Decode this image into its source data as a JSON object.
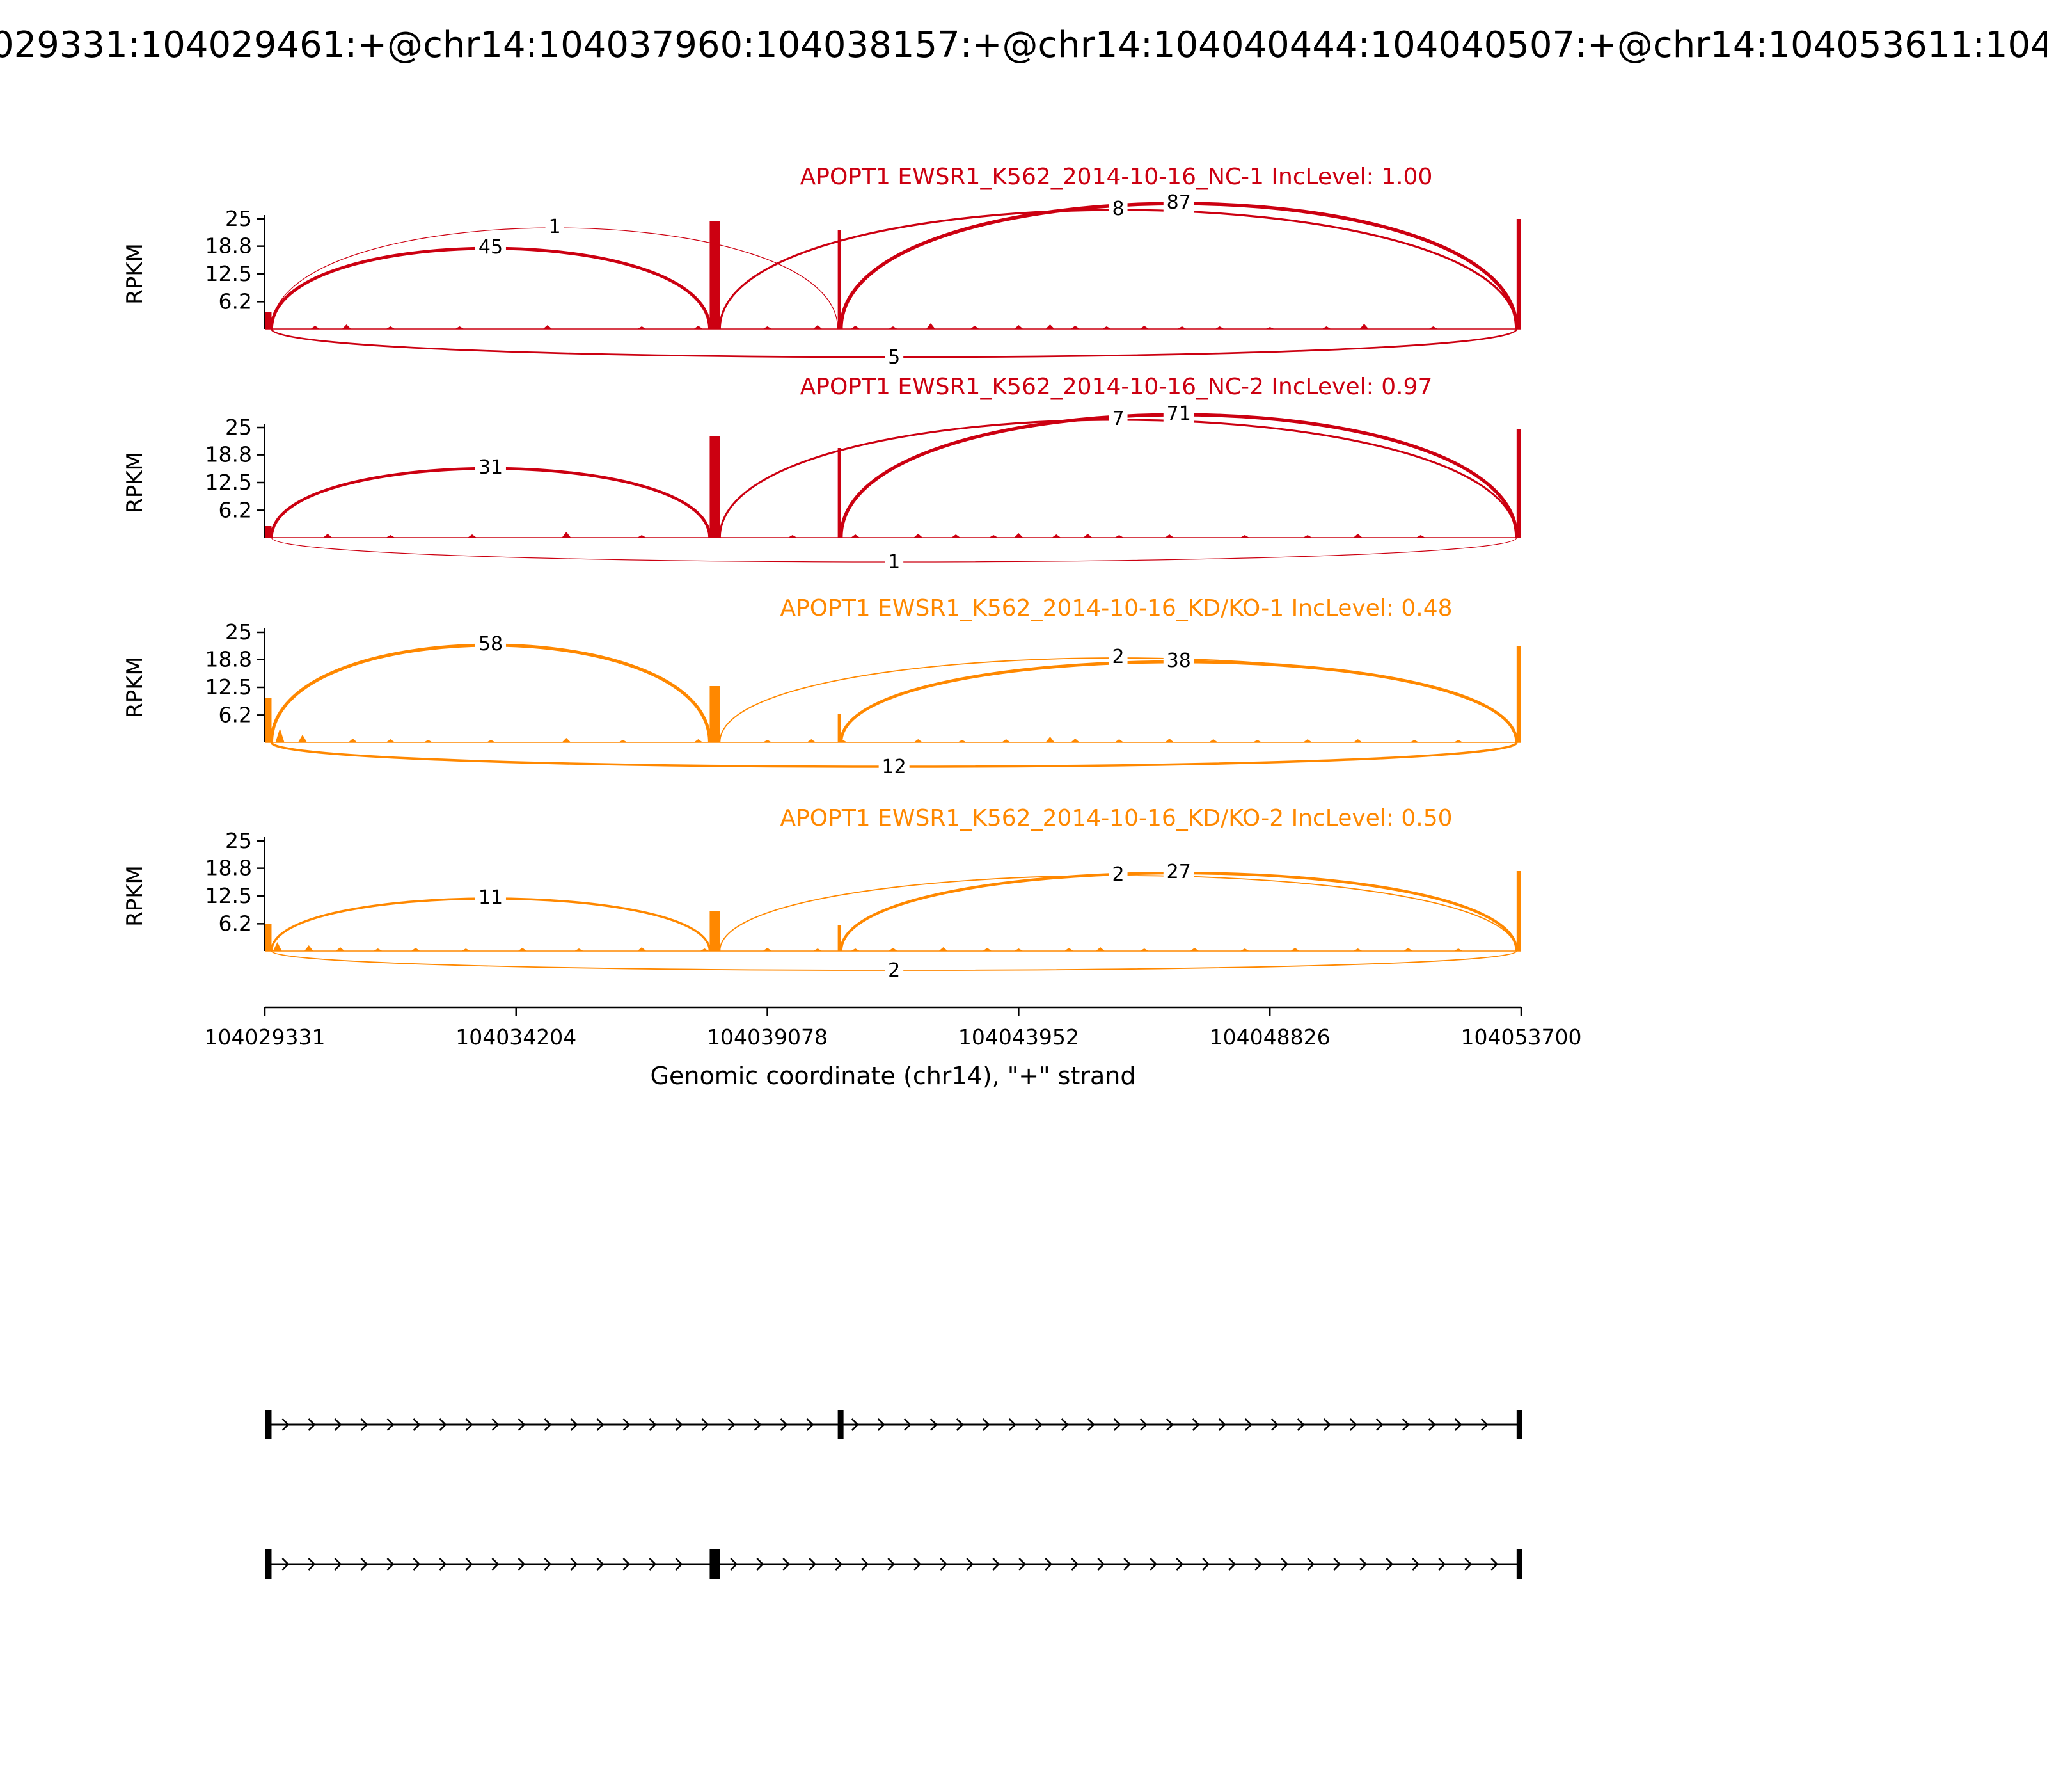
{
  "event_title": "029331:104029461:+@chr14:104037960:104038157:+@chr14:104040444:104040507:+@chr14:104053611:104",
  "ylabel": "RPKM",
  "yticks": [
    {
      "value": 25,
      "label": "25"
    },
    {
      "value": 18.8,
      "label": "18.8"
    },
    {
      "value": 12.5,
      "label": "12.5"
    },
    {
      "value": 6.2,
      "label": "6.2"
    }
  ],
  "x_axis": {
    "label": "Genomic coordinate (chr14), \"+\" strand",
    "range": [
      104029331,
      104053700
    ],
    "ticks": [
      "104029331",
      "104034204",
      "104039078",
      "104043952",
      "104048826",
      "104053700"
    ]
  },
  "chart_data": {
    "type": "sashimi",
    "gene": "APOPT1",
    "chromosome": "chr14",
    "strand": "+",
    "ylim": [
      0,
      25
    ],
    "groups": [
      "NC",
      "KD/KO"
    ],
    "tracks": [
      {
        "id": "NC-1",
        "title": "APOPT1 EWSR1_K562_2014-10-16_NC-1 IncLevel: 1.00",
        "inc_level": 1.0,
        "color": "#CC0011",
        "junctions": [
          {
            "from": 104029461,
            "to": 104037960,
            "count": 45,
            "side": "top",
            "peak": 126
          },
          {
            "from": 104029461,
            "to": 104040444,
            "count": 1,
            "side": "top",
            "peak": 158
          },
          {
            "from": 104038157,
            "to": 104053611,
            "count": 8,
            "side": "top",
            "peak": 186
          },
          {
            "from": 104040507,
            "to": 104053611,
            "count": 87,
            "side": "top",
            "peak": 196
          },
          {
            "from": 104029461,
            "to": 104053611,
            "count": 5,
            "side": "bottom",
            "peak": 44
          }
        ],
        "exons_coverage": [
          {
            "from": 104029331,
            "to": 104029461,
            "h": 26
          },
          {
            "from": 104037960,
            "to": 104038157,
            "h": 168
          },
          {
            "from": 104040444,
            "to": 104040507,
            "h": 155
          },
          {
            "from": 104053611,
            "to": 104053700,
            "h": 172
          }
        ],
        "noise": [
          [
            0.04,
            5
          ],
          [
            0.065,
            7
          ],
          [
            0.1,
            4
          ],
          [
            0.155,
            4
          ],
          [
            0.225,
            6
          ],
          [
            0.3,
            4
          ],
          [
            0.345,
            5
          ],
          [
            0.4,
            4
          ],
          [
            0.44,
            6
          ],
          [
            0.47,
            5
          ],
          [
            0.5,
            4
          ],
          [
            0.53,
            9
          ],
          [
            0.565,
            5
          ],
          [
            0.6,
            6
          ],
          [
            0.625,
            7
          ],
          [
            0.645,
            5
          ],
          [
            0.67,
            4
          ],
          [
            0.7,
            5
          ],
          [
            0.73,
            4
          ],
          [
            0.76,
            4
          ],
          [
            0.8,
            3
          ],
          [
            0.845,
            4
          ],
          [
            0.875,
            8
          ],
          [
            0.93,
            4
          ]
        ]
      },
      {
        "id": "NC-2",
        "title": "APOPT1 EWSR1_K562_2014-10-16_NC-2 IncLevel: 0.97",
        "inc_level": 0.97,
        "color": "#CC0011",
        "junctions": [
          {
            "from": 104029461,
            "to": 104037960,
            "count": 31,
            "side": "top",
            "peak": 108
          },
          {
            "from": 104038157,
            "to": 104053611,
            "count": 7,
            "side": "top",
            "peak": 184
          },
          {
            "from": 104040507,
            "to": 104053611,
            "count": 71,
            "side": "top",
            "peak": 192
          },
          {
            "from": 104029461,
            "to": 104053611,
            "count": 1,
            "side": "bottom",
            "peak": 38
          }
        ],
        "exons_coverage": [
          {
            "from": 104029331,
            "to": 104029461,
            "h": 18
          },
          {
            "from": 104037960,
            "to": 104038157,
            "h": 158
          },
          {
            "from": 104040444,
            "to": 104040507,
            "h": 140
          },
          {
            "from": 104053611,
            "to": 104053700,
            "h": 170
          }
        ],
        "noise": [
          [
            0.05,
            6
          ],
          [
            0.1,
            4
          ],
          [
            0.165,
            5
          ],
          [
            0.24,
            9
          ],
          [
            0.3,
            4
          ],
          [
            0.36,
            5
          ],
          [
            0.42,
            4
          ],
          [
            0.47,
            5
          ],
          [
            0.52,
            6
          ],
          [
            0.55,
            5
          ],
          [
            0.58,
            4
          ],
          [
            0.6,
            7
          ],
          [
            0.63,
            5
          ],
          [
            0.655,
            6
          ],
          [
            0.68,
            4
          ],
          [
            0.72,
            5
          ],
          [
            0.78,
            4
          ],
          [
            0.83,
            4
          ],
          [
            0.87,
            6
          ],
          [
            0.92,
            4
          ]
        ]
      },
      {
        "id": "KD/KO-1",
        "title": "APOPT1 EWSR1_K562_2014-10-16_KD/KO-1 IncLevel: 0.48",
        "inc_level": 0.48,
        "color": "#FF8800",
        "junctions": [
          {
            "from": 104029461,
            "to": 104037960,
            "count": 58,
            "side": "top",
            "peak": 152
          },
          {
            "from": 104038157,
            "to": 104053611,
            "count": 2,
            "side": "top",
            "peak": 132
          },
          {
            "from": 104040507,
            "to": 104053611,
            "count": 38,
            "side": "top",
            "peak": 126
          },
          {
            "from": 104029461,
            "to": 104053611,
            "count": 12,
            "side": "bottom",
            "peak": 38
          }
        ],
        "exons_coverage": [
          {
            "from": 104029331,
            "to": 104029461,
            "h": 70
          },
          {
            "from": 104037960,
            "to": 104038157,
            "h": 88
          },
          {
            "from": 104040444,
            "to": 104040507,
            "h": 45
          },
          {
            "from": 104053611,
            "to": 104053700,
            "h": 150
          }
        ],
        "noise": [
          [
            0.012,
            22
          ],
          [
            0.03,
            12
          ],
          [
            0.07,
            6
          ],
          [
            0.1,
            5
          ],
          [
            0.13,
            4
          ],
          [
            0.18,
            4
          ],
          [
            0.24,
            7
          ],
          [
            0.285,
            4
          ],
          [
            0.345,
            5
          ],
          [
            0.4,
            4
          ],
          [
            0.435,
            5
          ],
          [
            0.46,
            4
          ],
          [
            0.52,
            5
          ],
          [
            0.555,
            4
          ],
          [
            0.59,
            5
          ],
          [
            0.625,
            9
          ],
          [
            0.645,
            6
          ],
          [
            0.68,
            5
          ],
          [
            0.72,
            6
          ],
          [
            0.755,
            5
          ],
          [
            0.79,
            4
          ],
          [
            0.83,
            5
          ],
          [
            0.87,
            5
          ],
          [
            0.915,
            4
          ],
          [
            0.95,
            4
          ]
        ]
      },
      {
        "id": "KD/KO-2",
        "title": "APOPT1 EWSR1_K562_2014-10-16_KD/KO-2 IncLevel: 0.50",
        "inc_level": 0.5,
        "color": "#FF8800",
        "junctions": [
          {
            "from": 104029461,
            "to": 104037960,
            "count": 11,
            "side": "top",
            "peak": 82
          },
          {
            "from": 104038157,
            "to": 104053611,
            "count": 2,
            "side": "top",
            "peak": 118
          },
          {
            "from": 104040507,
            "to": 104053611,
            "count": 27,
            "side": "top",
            "peak": 122
          },
          {
            "from": 104029461,
            "to": 104053611,
            "count": 2,
            "side": "bottom",
            "peak": 30
          }
        ],
        "exons_coverage": [
          {
            "from": 104029331,
            "to": 104029461,
            "h": 42
          },
          {
            "from": 104037960,
            "to": 104038157,
            "h": 62
          },
          {
            "from": 104040444,
            "to": 104040507,
            "h": 40
          },
          {
            "from": 104053611,
            "to": 104053700,
            "h": 125
          }
        ],
        "noise": [
          [
            0.01,
            14
          ],
          [
            0.035,
            9
          ],
          [
            0.06,
            6
          ],
          [
            0.09,
            4
          ],
          [
            0.12,
            5
          ],
          [
            0.16,
            4
          ],
          [
            0.205,
            5
          ],
          [
            0.25,
            4
          ],
          [
            0.3,
            6
          ],
          [
            0.35,
            4
          ],
          [
            0.4,
            5
          ],
          [
            0.44,
            4
          ],
          [
            0.47,
            4
          ],
          [
            0.5,
            5
          ],
          [
            0.54,
            6
          ],
          [
            0.575,
            5
          ],
          [
            0.6,
            4
          ],
          [
            0.64,
            5
          ],
          [
            0.665,
            6
          ],
          [
            0.7,
            4
          ],
          [
            0.74,
            5
          ],
          [
            0.78,
            4
          ],
          [
            0.82,
            5
          ],
          [
            0.87,
            4
          ],
          [
            0.91,
            5
          ],
          [
            0.95,
            4
          ]
        ]
      }
    ],
    "transcripts": [
      {
        "exons": [
          [
            104029331,
            104029461
          ],
          [
            104040444,
            104040507
          ],
          [
            104053611,
            104053700
          ]
        ]
      },
      {
        "exons": [
          [
            104029331,
            104029461
          ],
          [
            104037960,
            104038157
          ],
          [
            104053611,
            104053700
          ]
        ]
      }
    ]
  }
}
